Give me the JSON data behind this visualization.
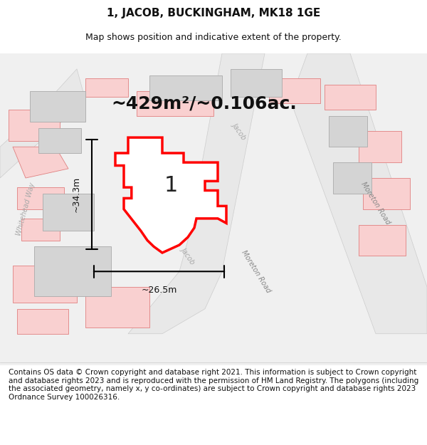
{
  "title": "1, JACOB, BUCKINGHAM, MK18 1GE",
  "subtitle": "Map shows position and indicative extent of the property.",
  "area_text": "~429m²/~0.106ac.",
  "plot_number": "1",
  "width_label": "~26.5m",
  "height_label": "~34.3m",
  "footer": "Contains OS data © Crown copyright and database right 2021. This information is subject to Crown copyright and database rights 2023 and is reproduced with the permission of HM Land Registry. The polygons (including the associated geometry, namely x, y co-ordinates) are subject to Crown copyright and database rights 2023 Ordnance Survey 100026316.",
  "bg_color": "#f5f5f5",
  "map_bg": "#ffffff",
  "road_color_light": "#f4c0c0",
  "road_color_dark": "#d0d0d0",
  "plot_fill": "#ffffff",
  "plot_edge": "#ff0000",
  "building_fill": "#d8d8d8",
  "title_fontsize": 11,
  "subtitle_fontsize": 9,
  "area_fontsize": 18,
  "plot_label_fontsize": 20,
  "footer_fontsize": 7.5
}
